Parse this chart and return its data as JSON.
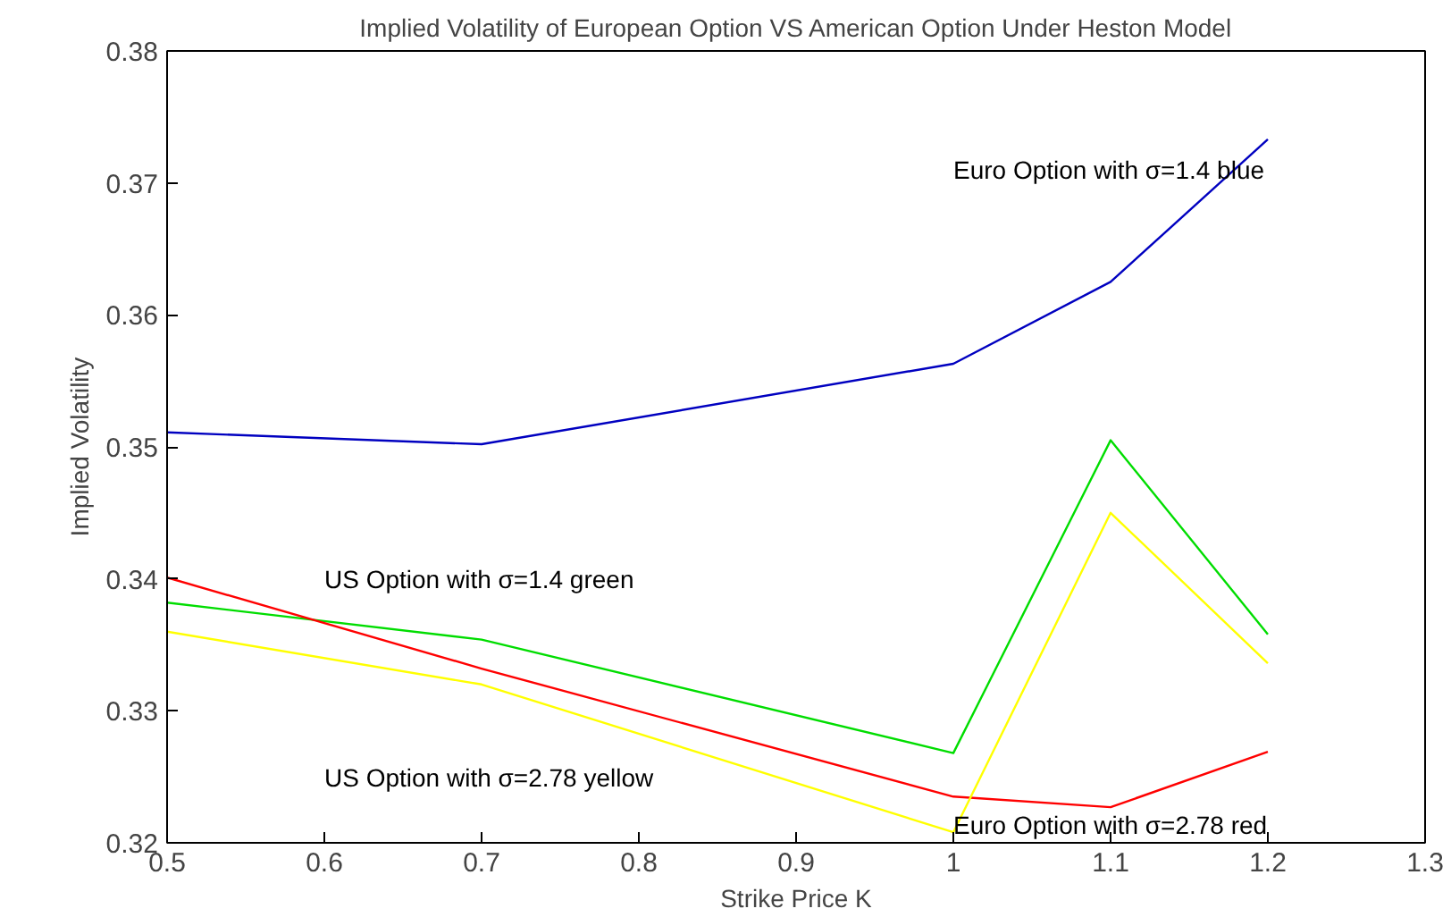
{
  "chart_data": {
    "type": "line",
    "title": "Implied Volatility of European Option VS American Option Under Heston Model",
    "xlabel": "Strike Price K",
    "ylabel": "Implied Volatility",
    "x": [
      0.5,
      0.7,
      1.0,
      1.1,
      1.2
    ],
    "series": [
      {
        "color": "#0000c0",
        "values": [
          0.3511,
          0.3502,
          0.3563,
          0.3625,
          0.3733
        ]
      },
      {
        "color": "#00dd00",
        "values": [
          0.3382,
          0.3354,
          0.3268,
          0.3505,
          0.3358
        ]
      },
      {
        "color": "#ff0000",
        "values": [
          0.3401,
          0.3332,
          0.3235,
          0.3227,
          0.3269
        ]
      },
      {
        "color": "#ffff00",
        "values": [
          0.336,
          0.332,
          0.3208,
          0.345,
          0.3336
        ]
      }
    ],
    "annotations": [
      "Euro Option with σ=1.4 blue",
      "US Option with σ=1.4 green",
      "US Option with σ=2.78 yellow",
      "Euro Option with σ=2.78 red"
    ],
    "xlim": [
      0.5,
      1.3
    ],
    "ylim": [
      0.32,
      0.38
    ],
    "xticks": [
      0.5,
      0.6,
      0.7,
      0.8,
      0.9,
      1,
      1.1,
      1.2,
      1.3
    ],
    "yticks": [
      0.32,
      0.33,
      0.34,
      0.35,
      0.36,
      0.37,
      0.38
    ],
    "grid": false,
    "marker": "none",
    "line_style": "solid"
  }
}
